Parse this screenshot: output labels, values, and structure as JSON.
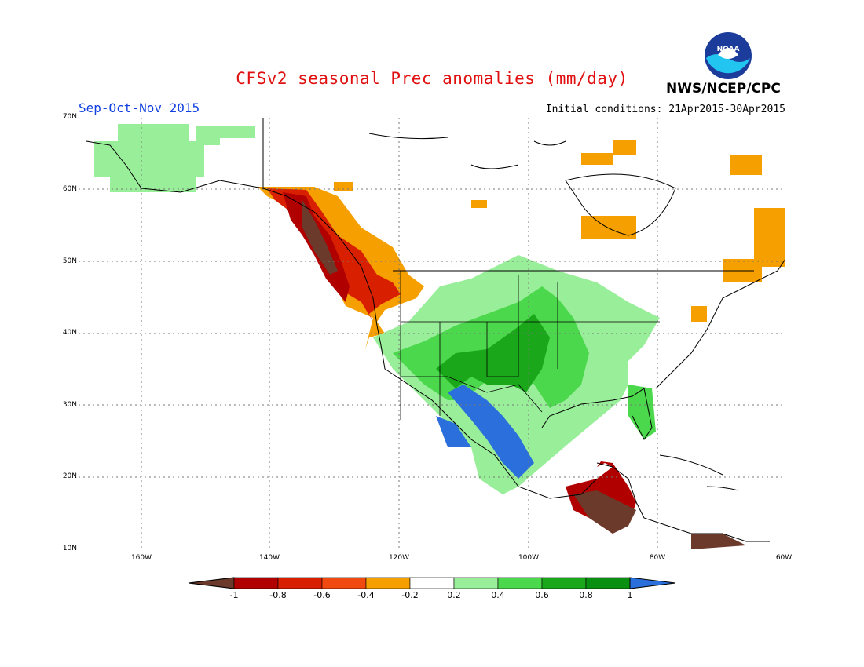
{
  "header": {
    "title": "CFSv2 seasonal Prec anomalies (mm/day)",
    "season": "Sep-Oct-Nov 2015",
    "init_conditions": "Initial conditions: 21Apr2015-30Apr2015",
    "agency": "NWS/NCEP/CPC",
    "logo_text": "NOAA"
  },
  "axes": {
    "lat_labels": [
      "70N",
      "60N",
      "50N",
      "40N",
      "30N",
      "20N",
      "10N"
    ],
    "lon_labels": [
      "160W",
      "140W",
      "120W",
      "100W",
      "80W",
      "60W"
    ]
  },
  "colorbar": {
    "labels": [
      "-1",
      "-0.8",
      "-0.6",
      "-0.4",
      "-0.2",
      "0.2",
      "0.4",
      "0.6",
      "0.8",
      "1"
    ],
    "colors": [
      "#6b3a2a",
      "#b00000",
      "#d82000",
      "#f04a10",
      "#f5a000",
      "#ffffff",
      "#99ee99",
      "#4cd84c",
      "#1aa81a",
      "#0a9010",
      "#2a6fdc"
    ]
  }
}
